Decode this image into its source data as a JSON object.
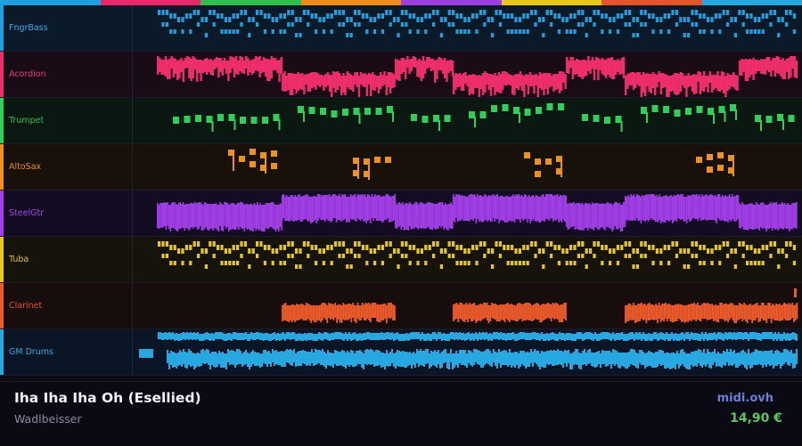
{
  "palette": {
    "top_strip": [
      "#1e9fe0",
      "#e8286a",
      "#2fbf4f",
      "#ef8c1a",
      "#9b3fe0",
      "#e9c81e",
      "#e4532a",
      "#25a7e0"
    ]
  },
  "tracks": [
    {
      "name": "FngrBass",
      "color": "#1e9fe0",
      "bg": "#0a1a28",
      "label_color": "#3aa8e6",
      "pattern": "bass"
    },
    {
      "name": "Acordion",
      "color": "#ee2d6b",
      "bg": "#1a0c17",
      "label_color": "#e8356f",
      "pattern": "accordion"
    },
    {
      "name": "Trumpet",
      "color": "#2fd05a",
      "bg": "#0b1811",
      "label_color": "#2fbf4f",
      "pattern": "trumpet"
    },
    {
      "name": "AltoSax",
      "color": "#ef921c",
      "bg": "#171109",
      "label_color": "#ef8c1a",
      "pattern": "sax"
    },
    {
      "name": "SteelGtr",
      "color": "#a23fe8",
      "bg": "#130c22",
      "label_color": "#a24ae6",
      "pattern": "guitar"
    },
    {
      "name": "Tuba",
      "color": "#e9c81e",
      "bg": "#15130a",
      "label_color": "#e2c22a",
      "pattern": "tuba"
    },
    {
      "name": "Clarinet",
      "color": "#ea5a2b",
      "bg": "#180d0d",
      "label_color": "#e4532a",
      "pattern": "clarinet"
    },
    {
      "name": "GM Drums",
      "color": "#27a8e0",
      "bg": "#0a1626",
      "label_color": "#2ea6dc",
      "pattern": "drums"
    }
  ],
  "song": {
    "title": "Iha Iha Iha Oh (Esellied)",
    "artist": "Wadlbeisser"
  },
  "site": "midi.ovh",
  "price": "14,90 €"
}
